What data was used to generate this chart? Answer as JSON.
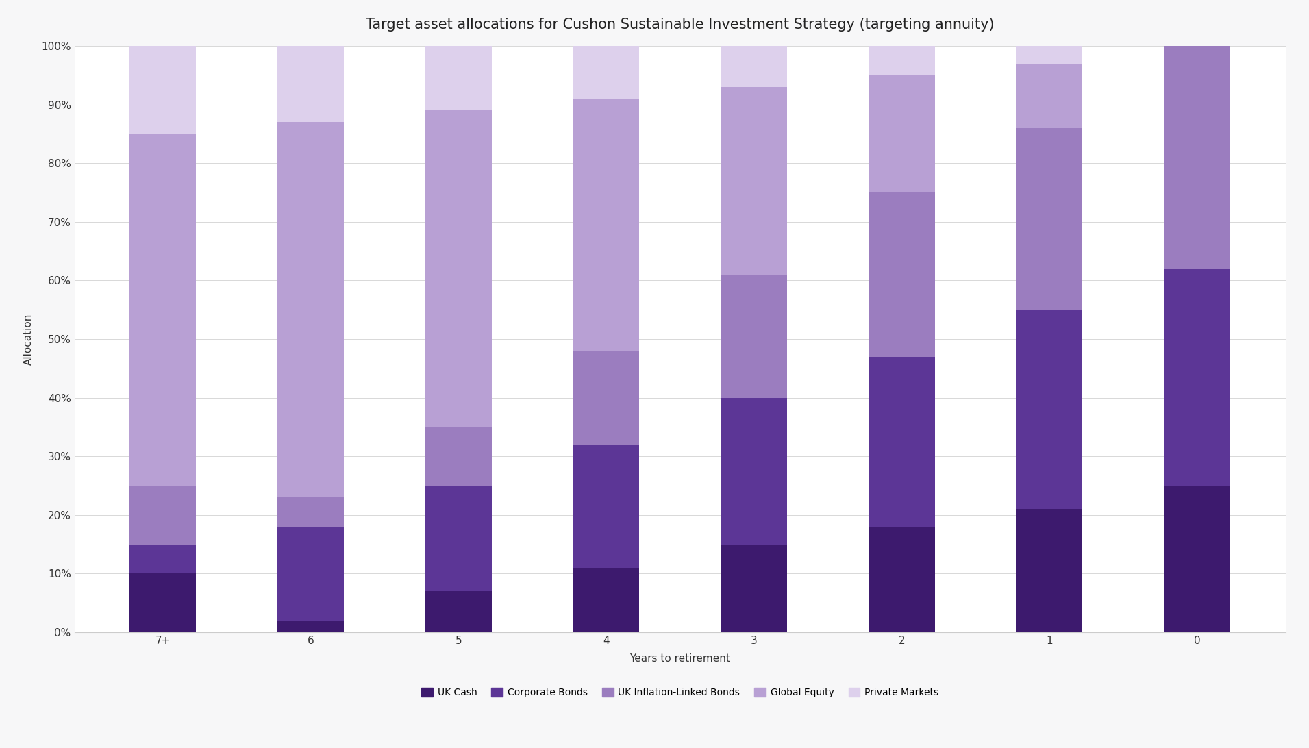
{
  "title": "Target asset allocations for Cushon Sustainable Investment Strategy (targeting annuity)",
  "xlabel": "Years to retirement",
  "ylabel": "Allocation",
  "categories": [
    "7+",
    "6",
    "5",
    "4",
    "3",
    "2",
    "1",
    "0"
  ],
  "series": {
    "UK Cash": [
      10,
      2,
      7,
      11,
      15,
      18,
      21,
      25
    ],
    "Corporate Bonds": [
      5,
      16,
      18,
      21,
      25,
      29,
      34,
      37
    ],
    "UK Inflation-Linked Bonds": [
      10,
      5,
      10,
      16,
      21,
      28,
      31,
      38
    ],
    "Global Equity": [
      60,
      64,
      54,
      43,
      32,
      20,
      11,
      0
    ],
    "Private Markets": [
      15,
      13,
      11,
      9,
      7,
      5,
      3,
      0
    ]
  },
  "colors": {
    "UK Cash": "#3d1a6e",
    "Corporate Bonds": "#5c3696",
    "UK Inflation-Linked Bonds": "#9b7dbf",
    "Global Equity": "#b8a0d4",
    "Private Markets": "#ddd0ec"
  },
  "legend_order": [
    "UK Cash",
    "Corporate Bonds",
    "UK Inflation-Linked Bonds",
    "Global Equity",
    "Private Markets"
  ],
  "ylim": [
    0,
    100
  ],
  "yticks": [
    0,
    10,
    20,
    30,
    40,
    50,
    60,
    70,
    80,
    90,
    100
  ],
  "ytick_labels": [
    "0%",
    "10%",
    "20%",
    "30%",
    "40%",
    "50%",
    "60%",
    "70%",
    "80%",
    "90%",
    "100%"
  ],
  "background_color": "#f7f7f8",
  "plot_bg_color": "#ffffff",
  "bar_width": 0.45,
  "title_fontsize": 15,
  "axis_fontsize": 11,
  "legend_fontsize": 10,
  "tick_fontsize": 11
}
